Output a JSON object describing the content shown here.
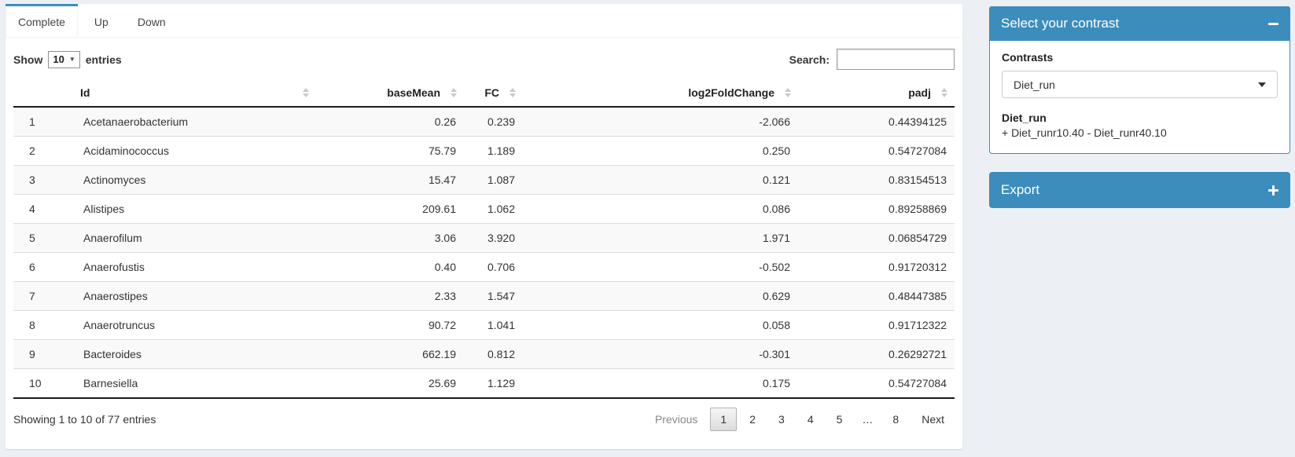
{
  "colors": {
    "primary": "#3c8dbc",
    "page_bg": "#ecf0f5"
  },
  "tab_bar": {
    "tabs": [
      {
        "label": "Complete",
        "active": true
      },
      {
        "label": "Up",
        "active": false
      },
      {
        "label": "Down",
        "active": false
      }
    ]
  },
  "controls": {
    "show_label": "Show",
    "page_length": "10",
    "entries_label": "entries",
    "search_label": "Search:",
    "search_value": ""
  },
  "table": {
    "columns": [
      {
        "label": "",
        "sortable": false,
        "align": "left"
      },
      {
        "label": "Id",
        "sortable": true,
        "align": "left"
      },
      {
        "label": "baseMean",
        "sortable": true,
        "align": "right"
      },
      {
        "label": "FC",
        "sortable": true,
        "align": "right"
      },
      {
        "label": "log2FoldChange",
        "sortable": true,
        "align": "right"
      },
      {
        "label": "padj",
        "sortable": true,
        "align": "right"
      }
    ],
    "rows": [
      [
        "1",
        "Acetanaerobacterium",
        "0.26",
        "0.239",
        "-2.066",
        "0.44394125"
      ],
      [
        "2",
        "Acidaminococcus",
        "75.79",
        "1.189",
        "0.250",
        "0.54727084"
      ],
      [
        "3",
        "Actinomyces",
        "15.47",
        "1.087",
        "0.121",
        "0.83154513"
      ],
      [
        "4",
        "Alistipes",
        "209.61",
        "1.062",
        "0.086",
        "0.89258869"
      ],
      [
        "5",
        "Anaerofilum",
        "3.06",
        "3.920",
        "1.971",
        "0.06854729"
      ],
      [
        "6",
        "Anaerofustis",
        "0.40",
        "0.706",
        "-0.502",
        "0.91720312"
      ],
      [
        "7",
        "Anaerostipes",
        "2.33",
        "1.547",
        "0.629",
        "0.48447385"
      ],
      [
        "8",
        "Anaerotruncus",
        "90.72",
        "1.041",
        "0.058",
        "0.91712322"
      ],
      [
        "9",
        "Bacteroides",
        "662.19",
        "0.812",
        "-0.301",
        "0.26292721"
      ],
      [
        "10",
        "Barnesiella",
        "25.69",
        "1.129",
        "0.175",
        "0.54727084"
      ]
    ]
  },
  "footer": {
    "info": "Showing 1 to 10 of 77 entries",
    "pagination": [
      {
        "label": "Previous",
        "state": "disabled"
      },
      {
        "label": "1",
        "state": "current"
      },
      {
        "label": "2",
        "state": "normal"
      },
      {
        "label": "3",
        "state": "normal"
      },
      {
        "label": "4",
        "state": "normal"
      },
      {
        "label": "5",
        "state": "normal"
      },
      {
        "label": "…",
        "state": "ellipsis"
      },
      {
        "label": "8",
        "state": "normal"
      },
      {
        "label": "Next",
        "state": "normal"
      }
    ]
  },
  "contrast_panel": {
    "title": "Select your contrast",
    "collapse_icon": "minus-icon",
    "contrasts_label": "Contrasts",
    "selected_value": "Diet_run",
    "detail_name": "Diet_run",
    "detail_formula": "+ Diet_runr10.40 - Diet_runr40.10"
  },
  "export_panel": {
    "title": "Export",
    "collapse_icon": "plus-icon"
  }
}
